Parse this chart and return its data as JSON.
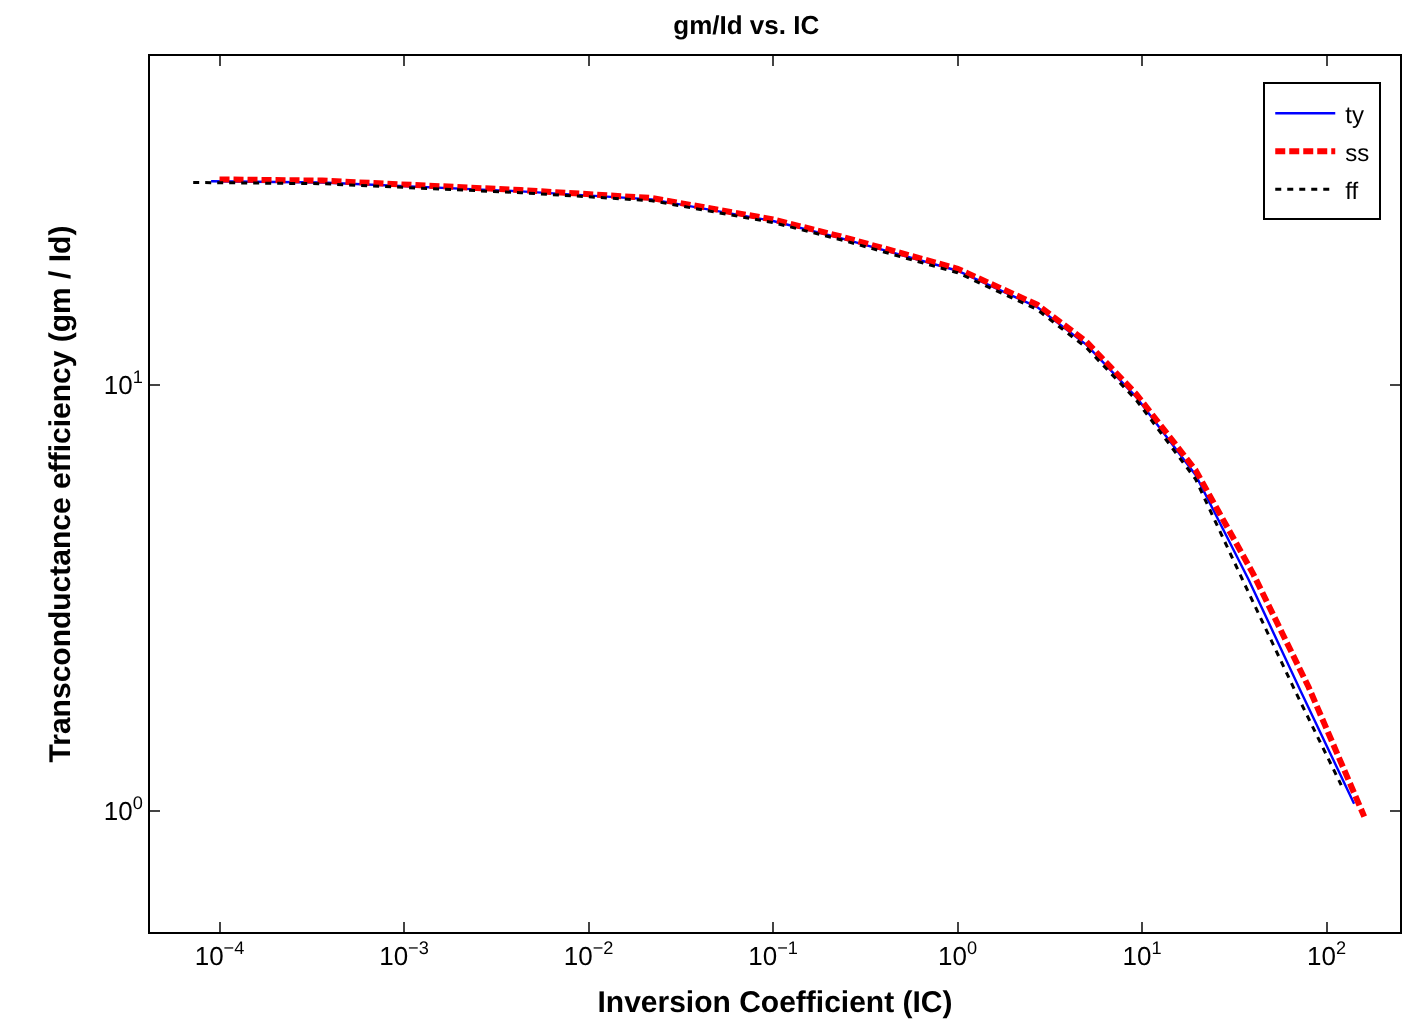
{
  "chart_data": {
    "type": "line",
    "title": "gm/Id vs. IC",
    "xlabel": "Inversion Coefficient (IC)",
    "ylabel": "Transconductance efficiency (gm / Id)",
    "log": "xy",
    "grid": false,
    "legend": "top right",
    "marker": "none",
    "xlim": [
      4.2e-05,
      250
    ],
    "ylim": [
      0.52,
      59
    ],
    "xticks": [
      {
        "value": 0.0001,
        "label": "10$^{−4}$"
      },
      {
        "value": 0.001,
        "label": "10$^{−3}$"
      },
      {
        "value": 0.01,
        "label": "10$^{−2}$"
      },
      {
        "value": 0.1,
        "label": "10$^{−1}$"
      },
      {
        "value": 1,
        "label": "10$^{0}$"
      },
      {
        "value": 10,
        "label": "10$^{1}$"
      },
      {
        "value": 100,
        "label": "10$^{2}$"
      }
    ],
    "yticks": [
      {
        "value": 1,
        "label": "10$^{0}$"
      },
      {
        "value": 10,
        "label": "10$^{1}$"
      }
    ],
    "series": [
      {
        "name": "ty",
        "color": "#0000ff",
        "line_style": "solid",
        "x": [
          9e-05,
          0.00036,
          0.0043,
          0.022,
          0.1,
          0.23,
          1,
          2.7,
          5,
          9.3,
          19.5,
          38,
          72,
          141
        ],
        "values": [
          30.0,
          29.8,
          28.4,
          27.2,
          24.2,
          22.1,
          18.5,
          15.2,
          12.4,
          9.35,
          6.14,
          3.47,
          1.92,
          1.04
        ]
      },
      {
        "name": "ss",
        "color": "#ff0000",
        "line_style": "dashed",
        "x": [
          0.0001,
          0.00036,
          0.0043,
          0.022,
          0.1,
          0.23,
          1,
          2.7,
          5,
          9.3,
          19.5,
          40,
          80,
          160
        ],
        "values": [
          30.3,
          30.1,
          28.6,
          27.4,
          24.4,
          22.3,
          18.7,
          15.4,
          12.6,
          9.5,
          6.3,
          3.6,
          1.95,
          0.97
        ]
      },
      {
        "name": "ff",
        "color": "#000000",
        "line_style": "dotted",
        "x": [
          7.2e-05,
          0.00036,
          0.0043,
          0.022,
          0.1,
          0.23,
          1,
          2.7,
          5,
          9.3,
          19.5,
          36,
          68,
          120
        ],
        "values": [
          29.8,
          29.6,
          28.2,
          27.0,
          24.0,
          21.9,
          18.3,
          15.0,
          12.2,
          9.2,
          6.0,
          3.4,
          1.9,
          1.15
        ]
      }
    ]
  }
}
